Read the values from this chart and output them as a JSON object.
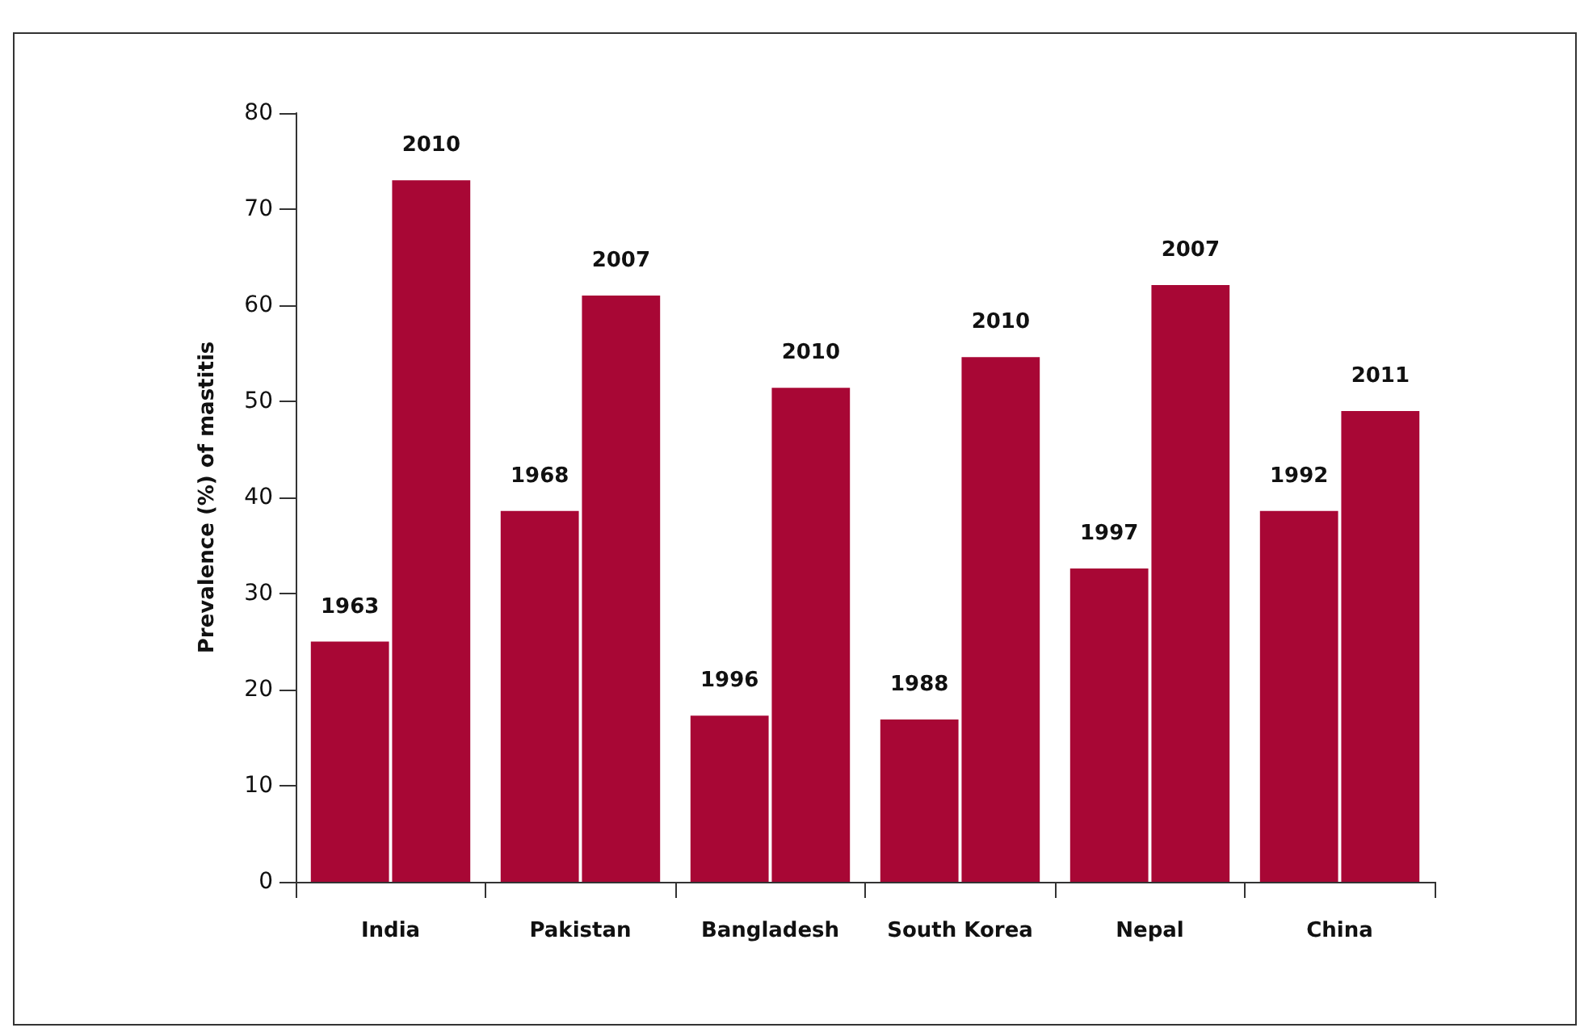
{
  "chart_data": {
    "type": "bar",
    "ylabel": "Prevalence (%) of mastitis",
    "categories": [
      "India",
      "Pakistan",
      "Bangladesh",
      "South Korea",
      "Nepal",
      "China"
    ],
    "series": [
      {
        "color": "#a80735",
        "values": [
          25,
          38.6,
          17.3,
          16.9,
          32.6,
          38.6
        ]
      },
      {
        "color": "#a80735",
        "values": [
          73,
          61,
          51.4,
          54.6,
          62.1,
          49
        ]
      }
    ],
    "annotations": [
      {
        "text": "1963",
        "x": "India",
        "y": 25
      },
      {
        "text": "2010",
        "x": "India",
        "y": 73
      },
      {
        "text": "1968",
        "x": "Pakistan",
        "y": 38.6
      },
      {
        "text": "2007",
        "x": "Pakistan",
        "y": 61
      },
      {
        "text": "1996",
        "x": "Bangladesh",
        "y": 17.3
      },
      {
        "text": "2010",
        "x": "Bangladesh",
        "y": 51.4
      },
      {
        "text": "1988",
        "x": "South Korea",
        "y": 16.9
      },
      {
        "text": "2010",
        "x": "South Korea",
        "y": 54.6
      },
      {
        "text": "1997",
        "x": "Nepal",
        "y": 32.6
      },
      {
        "text": "2007",
        "x": "Nepal",
        "y": 62.1
      },
      {
        "text": "1992",
        "x": "China",
        "y": 38.6
      },
      {
        "text": "2011",
        "x": "China",
        "y": 49
      }
    ],
    "ylim": [
      0,
      80
    ],
    "yticks": [
      0,
      10,
      20,
      30,
      40,
      50,
      60,
      70,
      80
    ],
    "grid": false
  }
}
